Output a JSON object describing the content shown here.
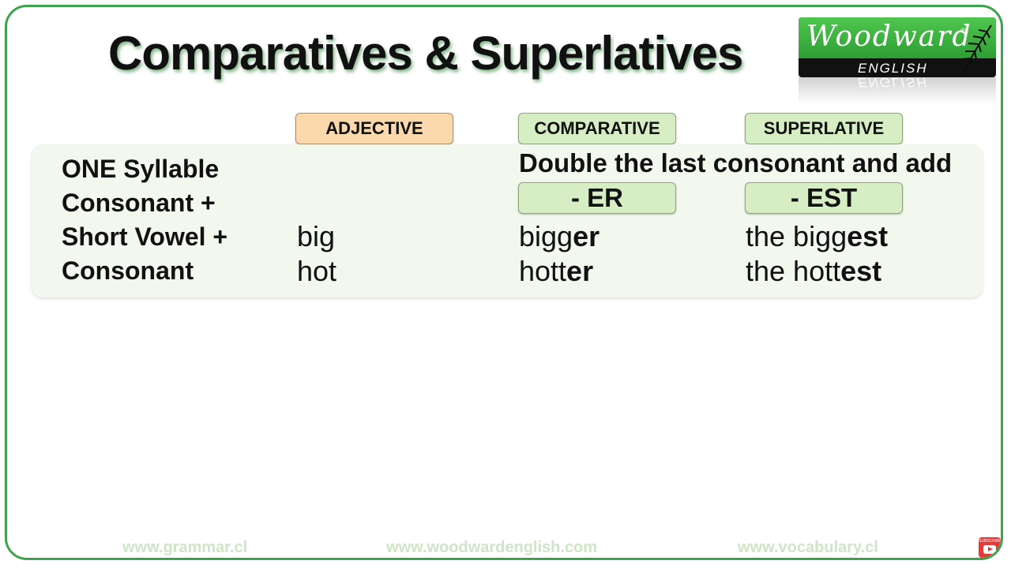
{
  "title": "Comparatives & Superlatives",
  "logo": {
    "name": "Woodward",
    "registered": "®",
    "sub": "ENGLISH"
  },
  "headers": {
    "adjective": "ADJECTIVE",
    "comparative": "COMPARATIVE",
    "superlative": "SUPERLATIVE"
  },
  "rule": {
    "lines": [
      "ONE Syllable",
      "Consonant +",
      "Short Vowel +",
      "Consonant"
    ]
  },
  "note": "Double the last consonant and add",
  "suffixes": {
    "er": "- ER",
    "est": "- EST"
  },
  "rows": [
    {
      "adjective": "big",
      "comparative_stem": "bigg",
      "comparative_suffix": "er",
      "superlative_stem": "the bigg",
      "superlative_suffix": "est"
    },
    {
      "adjective": "hot",
      "comparative_stem": "hott",
      "comparative_suffix": "er",
      "superlative_stem": "the hott",
      "superlative_suffix": "est"
    }
  ],
  "footer": {
    "left": "www.grammar.cl",
    "center": "www.woodwardenglish.com",
    "right": "www.vocabulary.cl",
    "subscribe": "SUBSCRIBE"
  },
  "colors": {
    "frame": "#3fa34d",
    "adjective_pill": "#fcd8ad",
    "green_pill": "#d7edc4",
    "panel": "#f3f8ee",
    "footer_text": "#cde6c5"
  }
}
